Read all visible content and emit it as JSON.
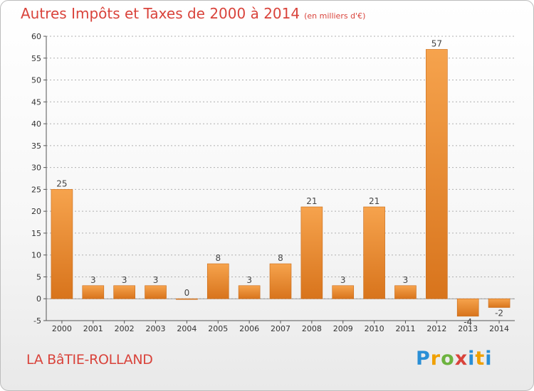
{
  "header": {
    "title": "Autres Impôts et Taxes de 2000 à 2014",
    "unit": "(en milliers d'€)"
  },
  "footer": {
    "commune": "LA BâTIE-ROLLAND",
    "logo": "Proxiti"
  },
  "colors": {
    "title": "#d9433b",
    "bar_light": "#f6a34d",
    "bar_dark": "#d8741c",
    "grid": "#b0b0b0"
  },
  "chart_data": {
    "type": "bar",
    "title": "Autres Impôts et Taxes de 2000 à 2014",
    "subtitle": "(en milliers d'€)",
    "xlabel": "",
    "ylabel": "",
    "categories": [
      "2000",
      "2001",
      "2002",
      "2003",
      "2004",
      "2005",
      "2006",
      "2007",
      "2008",
      "2009",
      "2010",
      "2011",
      "2012",
      "2013",
      "2014"
    ],
    "values": [
      25,
      3,
      3,
      3,
      0,
      8,
      3,
      8,
      21,
      3,
      21,
      3,
      57,
      -4,
      -2
    ],
    "value_labels": [
      "25",
      "3",
      "3",
      "3",
      "0",
      "8",
      "3",
      "8",
      "21",
      "3",
      "21",
      "3",
      "57",
      "-4",
      "-2"
    ],
    "ylim": [
      -5,
      60
    ],
    "yticks": [
      -5,
      0,
      5,
      10,
      15,
      20,
      25,
      30,
      35,
      40,
      45,
      50,
      55,
      60
    ],
    "grid": "horizontal dashed",
    "legend": "none"
  }
}
